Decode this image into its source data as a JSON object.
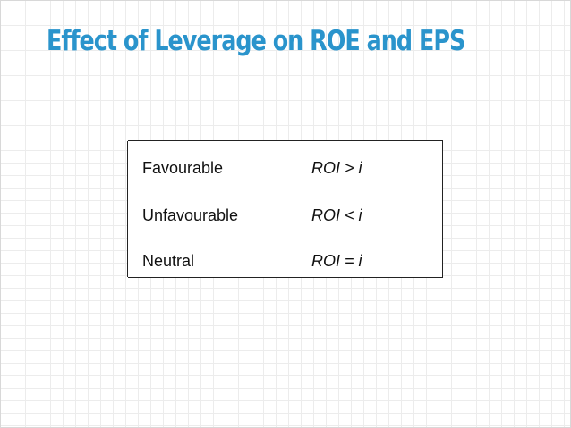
{
  "slide": {
    "title": "Effect of Leverage on ROE and EPS",
    "title_color": "#2a94cc",
    "table": {
      "rows": [
        {
          "label": "Favourable",
          "condition": "ROI > i"
        },
        {
          "label": "Unfavourable",
          "condition": "ROI < i"
        },
        {
          "label": "Neutral",
          "condition": "ROI = i"
        }
      ]
    }
  }
}
